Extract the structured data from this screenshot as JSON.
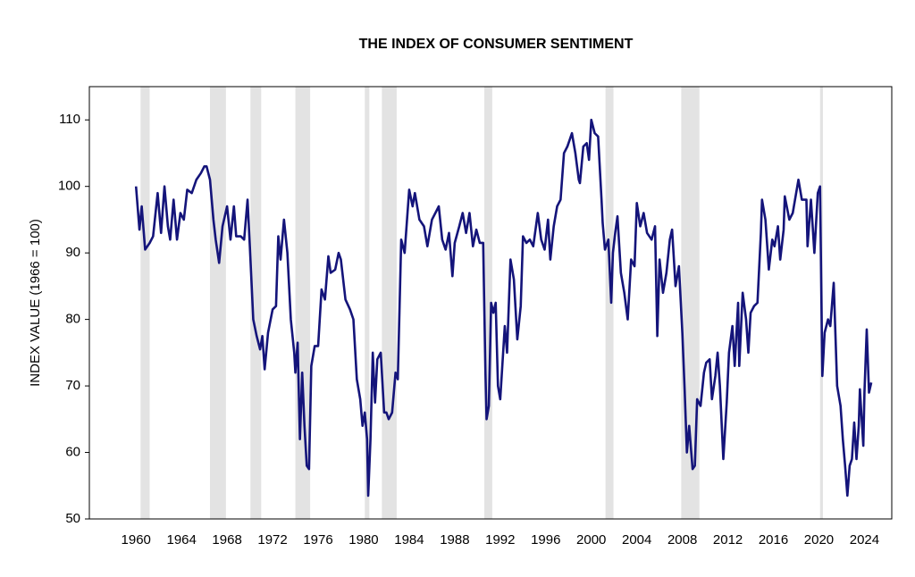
{
  "chart_data": {
    "type": "line",
    "title": "THE INDEX OF CONSUMER SENTIMENT",
    "ylabel": "INDEX VALUE (1966 = 100)",
    "color": "#14147a",
    "recession_color": "#e3e3e3",
    "recessions": [
      [
        1960.4,
        1961.2
      ],
      [
        1966.5,
        1967.9
      ],
      [
        1970.05,
        1971.0
      ],
      [
        1974.0,
        1975.3
      ],
      [
        1980.1,
        1980.5
      ],
      [
        1981.6,
        1982.9
      ],
      [
        1990.6,
        1991.3
      ],
      [
        2001.25,
        2001.95
      ],
      [
        2007.9,
        2009.5
      ],
      [
        2020.1,
        2020.35
      ]
    ],
    "x": [
      1960.0,
      1960.3,
      1960.5,
      1960.8,
      1961.2,
      1961.5,
      1961.9,
      1962.2,
      1962.5,
      1962.8,
      1963.0,
      1963.3,
      1963.6,
      1963.9,
      1964.2,
      1964.5,
      1964.9,
      1965.3,
      1965.7,
      1966.0,
      1966.2,
      1966.5,
      1966.8,
      1967.0,
      1967.3,
      1967.6,
      1968.0,
      1968.3,
      1968.6,
      1968.8,
      1969.2,
      1969.5,
      1969.8,
      1970.0,
      1970.3,
      1970.6,
      1970.9,
      1971.1,
      1971.3,
      1971.6,
      1972.0,
      1972.3,
      1972.5,
      1972.7,
      1973.0,
      1973.3,
      1973.6,
      1973.9,
      1974.0,
      1974.2,
      1974.4,
      1974.6,
      1974.8,
      1975.0,
      1975.2,
      1975.4,
      1975.7,
      1976.0,
      1976.3,
      1976.6,
      1976.9,
      1977.1,
      1977.5,
      1977.8,
      1978.0,
      1978.4,
      1978.8,
      1979.1,
      1979.4,
      1979.7,
      1979.9,
      1980.1,
      1980.3,
      1980.4,
      1980.6,
      1980.8,
      1981.0,
      1981.2,
      1981.5,
      1981.8,
      1982.0,
      1982.2,
      1982.5,
      1982.8,
      1983.0,
      1983.3,
      1983.6,
      1984.0,
      1984.3,
      1984.5,
      1984.9,
      1985.3,
      1985.6,
      1986.0,
      1986.3,
      1986.6,
      1986.9,
      1987.2,
      1987.5,
      1987.8,
      1988.0,
      1988.4,
      1988.7,
      1989.0,
      1989.3,
      1989.6,
      1989.9,
      1990.2,
      1990.5,
      1990.7,
      1990.8,
      1991.0,
      1991.2,
      1991.4,
      1991.6,
      1991.8,
      1992.0,
      1992.4,
      1992.6,
      1992.9,
      1993.2,
      1993.5,
      1993.8,
      1994.0,
      1994.3,
      1994.6,
      1994.9,
      1995.3,
      1995.6,
      1995.9,
      1996.2,
      1996.4,
      1996.7,
      1997.0,
      1997.3,
      1997.6,
      1997.9,
      1998.3,
      1998.6,
      1998.9,
      1999.0,
      1999.3,
      1999.6,
      1999.8,
      2000.0,
      2000.3,
      2000.6,
      2000.9,
      2001.0,
      2001.2,
      2001.5,
      2001.75,
      2001.9,
      2002.1,
      2002.3,
      2002.6,
      2002.9,
      2003.2,
      2003.5,
      2003.8,
      2004.0,
      2004.3,
      2004.6,
      2004.9,
      2005.3,
      2005.6,
      2005.8,
      2006.0,
      2006.3,
      2006.6,
      2006.9,
      2007.1,
      2007.4,
      2007.7,
      2008.0,
      2008.2,
      2008.4,
      2008.6,
      2008.9,
      2009.1,
      2009.3,
      2009.6,
      2009.9,
      2010.1,
      2010.4,
      2010.6,
      2010.9,
      2011.1,
      2011.3,
      2011.6,
      2011.9,
      2012.1,
      2012.4,
      2012.6,
      2012.9,
      2013.0,
      2013.3,
      2013.6,
      2013.8,
      2014.0,
      2014.3,
      2014.6,
      2014.9,
      2015.0,
      2015.3,
      2015.6,
      2015.9,
      2016.1,
      2016.4,
      2016.6,
      2016.9,
      2017.0,
      2017.4,
      2017.7,
      2017.9,
      2018.2,
      2018.5,
      2018.9,
      2019.0,
      2019.3,
      2019.6,
      2019.9,
      2020.1,
      2020.3,
      2020.5,
      2020.8,
      2021.0,
      2021.3,
      2021.6,
      2021.9,
      2022.1,
      2022.3,
      2022.5,
      2022.7,
      2022.9,
      2023.1,
      2023.3,
      2023.5,
      2023.6,
      2023.9,
      2024.0,
      2024.2,
      2024.4,
      2024.6
    ],
    "values": [
      100,
      93.5,
      97,
      90.5,
      91.5,
      92.5,
      99,
      93,
      100,
      94,
      92,
      98,
      92,
      96,
      95,
      99.5,
      99,
      101,
      102,
      103,
      103,
      101,
      95,
      92,
      88.5,
      94,
      97,
      92,
      97,
      92.5,
      92.5,
      92,
      98,
      91,
      80,
      77.5,
      75.5,
      77.5,
      72.5,
      78,
      81.5,
      82,
      92.5,
      89,
      95,
      90,
      80,
      75,
      72,
      76.5,
      62,
      72,
      64,
      58,
      57.5,
      73,
      76,
      76,
      84.5,
      83,
      89.5,
      87,
      87.5,
      90,
      89,
      83,
      81.5,
      80,
      71,
      68,
      64,
      66,
      62,
      53.5,
      62,
      75,
      67.5,
      74,
      75,
      66,
      66,
      65,
      66,
      72,
      71,
      92,
      90,
      99.5,
      97,
      99,
      95,
      94,
      91,
      95,
      96,
      97,
      92,
      90.5,
      93,
      86.5,
      91.5,
      94,
      96,
      93,
      96,
      91,
      93.5,
      91.5,
      91.5,
      72,
      65,
      67,
      82.5,
      81,
      82.5,
      70,
      68,
      79,
      75,
      89,
      86,
      77,
      82,
      92.5,
      91.5,
      92,
      91,
      96,
      92,
      90.5,
      95,
      89,
      94,
      97,
      98,
      105,
      106,
      108,
      105,
      101,
      100.5,
      106,
      106.5,
      104,
      110,
      108,
      107.5,
      98,
      94.5,
      90.5,
      92,
      82.5,
      90,
      93,
      95.5,
      87,
      84,
      80,
      89,
      88,
      97.5,
      94,
      96,
      93,
      92,
      94,
      77.5,
      89,
      84,
      87,
      92,
      93.5,
      85,
      88,
      78,
      69.5,
      60,
      64,
      57.5,
      58,
      68,
      67,
      72,
      73.5,
      74,
      68,
      71.5,
      75,
      70,
      59,
      67.5,
      75,
      79,
      73,
      82.5,
      73,
      84,
      80,
      75,
      81,
      82,
      82.5,
      93,
      98,
      95,
      87.5,
      92,
      91,
      94,
      89,
      93.5,
      98.5,
      95,
      96,
      98,
      101,
      98,
      98,
      91,
      98,
      90,
      99,
      100,
      71.5,
      78,
      80,
      79,
      85.5,
      70,
      67,
      62,
      58,
      53.5,
      58,
      59,
      64.5,
      59,
      64,
      69.5,
      61,
      69,
      78.5,
      69,
      70.5
    ],
    "xlim": [
      1955.9,
      2026.4
    ],
    "ylim": [
      50,
      115
    ],
    "xticks": [
      1960,
      1964,
      1968,
      1972,
      1976,
      1980,
      1984,
      1988,
      1992,
      1996,
      2000,
      2004,
      2008,
      2012,
      2016,
      2020,
      2024
    ],
    "yticks": [
      50,
      60,
      70,
      80,
      90,
      100,
      110
    ],
    "grid": false
  }
}
